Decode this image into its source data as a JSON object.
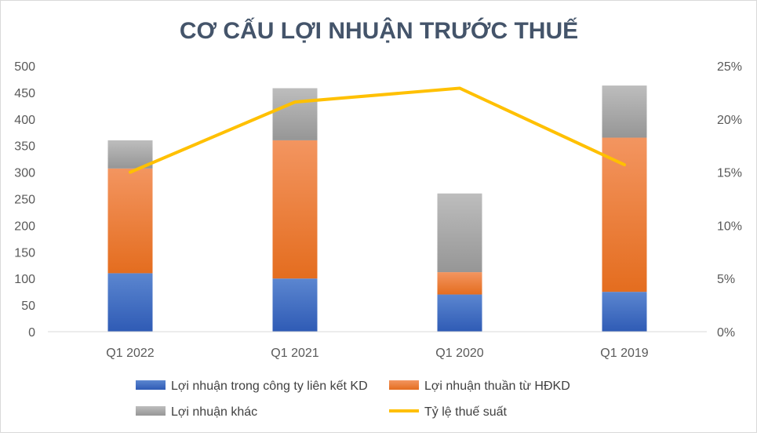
{
  "chart_data": {
    "type": "bar",
    "stacked": true,
    "title": "CƠ CẤU LỢI NHUẬN TRƯỚC THUẾ",
    "categories": [
      "Q1 2022",
      "Q1 2021",
      "Q1 2020",
      "Q1 2019"
    ],
    "ylim": [
      0,
      500
    ],
    "y_ticks": [
      "0",
      "50",
      "100",
      "150",
      "200",
      "250",
      "300",
      "350",
      "400",
      "450",
      "500"
    ],
    "y2lim": [
      0,
      0.25
    ],
    "y2_ticks": [
      "0%",
      "5%",
      "10%",
      "15%",
      "20%",
      "25%"
    ],
    "series": [
      {
        "name": "Lợi nhuận trong công ty liên kết KD",
        "color": "#4472c4",
        "values": [
          110,
          100,
          70,
          75
        ]
      },
      {
        "name": "Lợi nhuận thuần từ HĐKD",
        "color": "#ed7d31",
        "values": [
          197,
          260,
          42,
          290
        ]
      },
      {
        "name": "Lợi nhuận khác",
        "color": "#a5a5a5",
        "values": [
          53,
          98,
          148,
          98
        ]
      }
    ],
    "line_series": {
      "name": "Tỷ lệ thuế suất",
      "color": "#ffc000",
      "axis": "secondary",
      "values": [
        0.15,
        0.216,
        0.229,
        0.157
      ]
    },
    "grid": false,
    "legend": "bottom"
  }
}
